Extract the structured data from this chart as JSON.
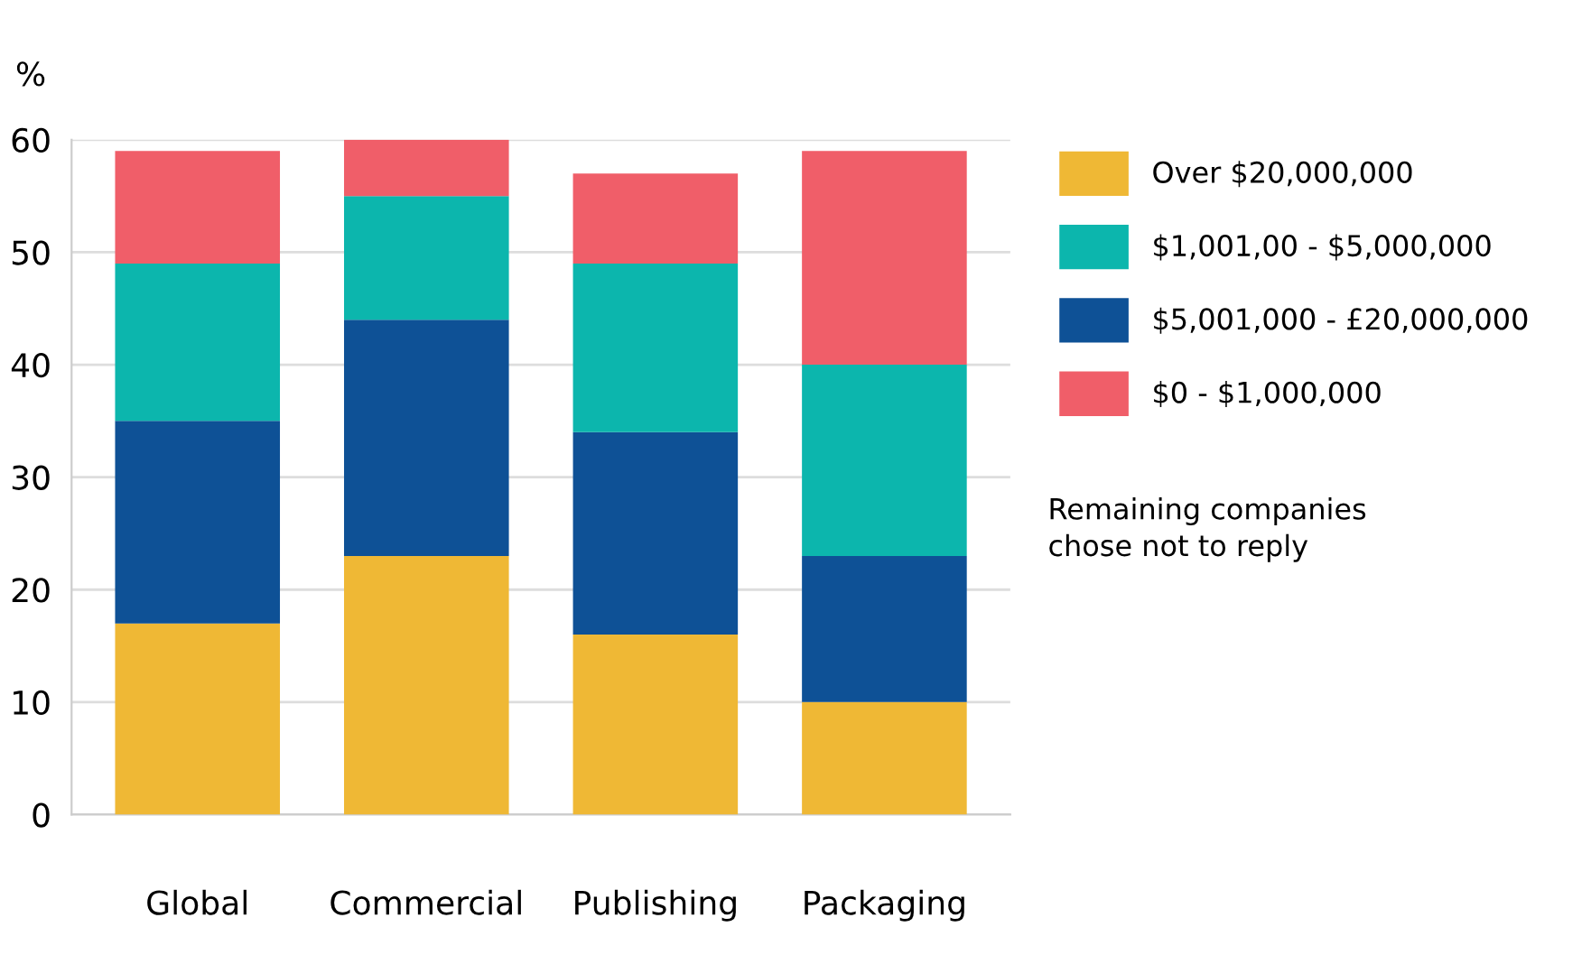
{
  "chart_data": {
    "type": "bar",
    "stacked": true,
    "ylabel": "%",
    "categories": [
      "Global",
      "Commercial",
      "Publishing",
      "Packaging"
    ],
    "series": [
      {
        "name": "Over $20,000,000",
        "color": "#efb835",
        "values": [
          17,
          23,
          16,
          10
        ]
      },
      {
        "name": "$5,001,000 - £20,000,000",
        "color": "#0e5196",
        "values": [
          18,
          21,
          18,
          13
        ]
      },
      {
        "name": "$1,001,00 - $5,000,000",
        "color": "#0cb6ad",
        "values": [
          14,
          11,
          15,
          17
        ]
      },
      {
        "name": "$0 - $1,000,000",
        "color": "#f05e69",
        "values": [
          10,
          5,
          8,
          19
        ]
      }
    ],
    "ylim": [
      0,
      60
    ],
    "yticks": [
      0,
      10,
      20,
      30,
      40,
      50,
      60
    ],
    "grid": "y",
    "legend": "right",
    "annotations": [
      "Remaining companies\nchose not to reply"
    ]
  }
}
